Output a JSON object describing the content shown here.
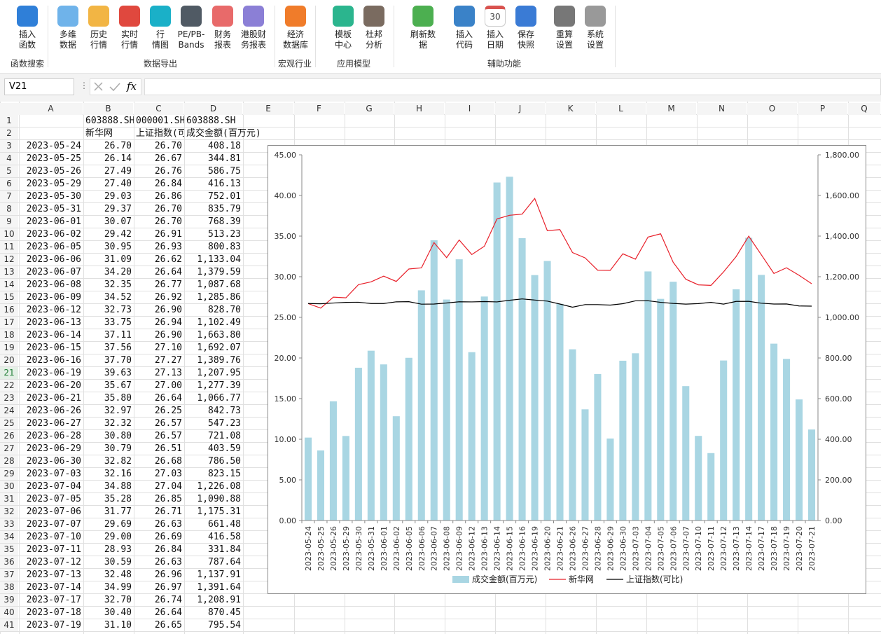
{
  "ribbon": {
    "groups": [
      {
        "name": "函数搜索",
        "buttons": [
          {
            "label": [
              "插入",
              "函数"
            ]
          }
        ]
      },
      {
        "name": "数据导出",
        "buttons": [
          {
            "label": [
              "多维",
              "数据"
            ]
          },
          {
            "label": [
              "历史",
              "行情"
            ]
          },
          {
            "label": [
              "实时",
              "行情"
            ]
          },
          {
            "label": [
              "行",
              "情图"
            ]
          },
          {
            "label": [
              "PE/PB-",
              "Bands"
            ]
          },
          {
            "label": [
              "财务",
              "报表"
            ]
          },
          {
            "label": [
              "港股财",
              "务报表"
            ]
          }
        ]
      },
      {
        "name": "宏观行业",
        "buttons": [
          {
            "label": [
              "经济",
              "数据库"
            ]
          }
        ]
      },
      {
        "name": "应用模型",
        "buttons": [
          {
            "label": [
              "模板",
              "中心"
            ]
          },
          {
            "label": [
              "杜邦",
              "分析"
            ]
          }
        ]
      },
      {
        "name": "辅助功能",
        "buttons": [
          {
            "label": [
              "刷新数",
              "据"
            ]
          },
          {
            "label": [
              "插入",
              "代码"
            ]
          },
          {
            "label": [
              "插入",
              "日期"
            ],
            "icon_text": "30"
          },
          {
            "label": [
              "保存",
              "快照"
            ]
          },
          {
            "label": [
              "重算",
              "设置"
            ]
          },
          {
            "label": [
              "系统",
              "设置"
            ]
          }
        ]
      }
    ]
  },
  "formula_bar": {
    "name_box": "V21",
    "function_symbol": "fx"
  },
  "sheet": {
    "columns": [
      "A",
      "B",
      "C",
      "D",
      "E",
      "F",
      "G",
      "H",
      "I",
      "J",
      "K",
      "L",
      "M",
      "N",
      "O",
      "P",
      "Q"
    ],
    "row_numbers": [
      1,
      2,
      3,
      4,
      5,
      6,
      7,
      8,
      9,
      10,
      11,
      12,
      13,
      14,
      15,
      16,
      17,
      18,
      19,
      20,
      21,
      22,
      23,
      24,
      25,
      26,
      27,
      28,
      29,
      30,
      31,
      32,
      33,
      34,
      35,
      36,
      37,
      38,
      39,
      40,
      41
    ],
    "header_cells": [
      {
        "B": "603888.SH",
        "C": "000001.SH",
        "D": "603888.SH"
      },
      {
        "B": "新华网",
        "C": "上证指数(可比)",
        "D": "成交金额(百万元)"
      }
    ],
    "rows": [
      [
        "2023-05-24",
        "26.70",
        "26.70",
        "408.18"
      ],
      [
        "2023-05-25",
        "26.14",
        "26.67",
        "344.81"
      ],
      [
        "2023-05-26",
        "27.49",
        "26.76",
        "586.75"
      ],
      [
        "2023-05-29",
        "27.40",
        "26.84",
        "416.13"
      ],
      [
        "2023-05-30",
        "29.03",
        "26.86",
        "752.01"
      ],
      [
        "2023-05-31",
        "29.37",
        "26.70",
        "835.79"
      ],
      [
        "2023-06-01",
        "30.07",
        "26.70",
        "768.39"
      ],
      [
        "2023-06-02",
        "29.42",
        "26.91",
        "513.23"
      ],
      [
        "2023-06-05",
        "30.95",
        "26.93",
        "800.83"
      ],
      [
        "2023-06-06",
        "31.09",
        "26.62",
        "1,133.04"
      ],
      [
        "2023-06-07",
        "34.20",
        "26.64",
        "1,379.59"
      ],
      [
        "2023-06-08",
        "32.35",
        "26.77",
        "1,087.68"
      ],
      [
        "2023-06-09",
        "34.52",
        "26.92",
        "1,285.86"
      ],
      [
        "2023-06-12",
        "32.73",
        "26.90",
        "828.70"
      ],
      [
        "2023-06-13",
        "33.75",
        "26.94",
        "1,102.49"
      ],
      [
        "2023-06-14",
        "37.11",
        "26.90",
        "1,663.80"
      ],
      [
        "2023-06-15",
        "37.56",
        "27.10",
        "1,692.07"
      ],
      [
        "2023-06-16",
        "37.70",
        "27.27",
        "1,389.76"
      ],
      [
        "2023-06-19",
        "39.63",
        "27.13",
        "1,207.95"
      ],
      [
        "2023-06-20",
        "35.67",
        "27.00",
        "1,277.39"
      ],
      [
        "2023-06-21",
        "35.80",
        "26.64",
        "1,066.77"
      ],
      [
        "2023-06-26",
        "32.97",
        "26.25",
        "842.73"
      ],
      [
        "2023-06-27",
        "32.32",
        "26.57",
        "547.23"
      ],
      [
        "2023-06-28",
        "30.80",
        "26.57",
        "721.08"
      ],
      [
        "2023-06-29",
        "30.79",
        "26.51",
        "403.59"
      ],
      [
        "2023-06-30",
        "32.82",
        "26.68",
        "786.50"
      ],
      [
        "2023-07-03",
        "32.16",
        "27.03",
        "823.15"
      ],
      [
        "2023-07-04",
        "34.88",
        "27.04",
        "1,226.08"
      ],
      [
        "2023-07-05",
        "35.28",
        "26.85",
        "1,090.88"
      ],
      [
        "2023-07-06",
        "31.77",
        "26.71",
        "1,175.31"
      ],
      [
        "2023-07-07",
        "29.69",
        "26.63",
        "661.48"
      ],
      [
        "2023-07-10",
        "29.00",
        "26.69",
        "416.58"
      ],
      [
        "2023-07-11",
        "28.93",
        "26.84",
        "331.84"
      ],
      [
        "2023-07-12",
        "30.59",
        "26.63",
        "787.64"
      ],
      [
        "2023-07-13",
        "32.48",
        "26.96",
        "1,137.91"
      ],
      [
        "2023-07-14",
        "34.99",
        "26.97",
        "1,391.64"
      ],
      [
        "2023-07-17",
        "32.70",
        "26.74",
        "1,208.91"
      ],
      [
        "2023-07-18",
        "30.40",
        "26.64",
        "870.45"
      ],
      [
        "2023-07-19",
        "31.10",
        "26.65",
        "795.54"
      ]
    ]
  },
  "chart_data": {
    "type": "combo",
    "categories": [
      "2023-05-24",
      "2023-05-25",
      "2023-05-26",
      "2023-05-29",
      "2023-05-30",
      "2023-05-31",
      "2023-06-01",
      "2023-06-02",
      "2023-06-05",
      "2023-06-06",
      "2023-06-07",
      "2023-06-08",
      "2023-06-09",
      "2023-06-12",
      "2023-06-13",
      "2023-06-14",
      "2023-06-15",
      "2023-06-16",
      "2023-06-19",
      "2023-06-20",
      "2023-06-21",
      "2023-06-26",
      "2023-06-27",
      "2023-06-28",
      "2023-06-29",
      "2023-06-30",
      "2023-07-03",
      "2023-07-04",
      "2023-07-05",
      "2023-07-06",
      "2023-07-07",
      "2023-07-10",
      "2023-07-11",
      "2023-07-12",
      "2023-07-13",
      "2023-07-14",
      "2023-07-17",
      "2023-07-18",
      "2023-07-19",
      "2023-07-20",
      "2023-07-21"
    ],
    "series": [
      {
        "name": "成交金额(百万元)",
        "type": "bar",
        "axis": "y2",
        "color": "#a9d6e3",
        "values": [
          408.18,
          344.81,
          586.75,
          416.13,
          752.01,
          835.79,
          768.39,
          513.23,
          800.83,
          1133.04,
          1379.59,
          1087.68,
          1285.86,
          828.7,
          1102.49,
          1663.8,
          1692.07,
          1389.76,
          1207.95,
          1277.39,
          1066.77,
          842.73,
          547.23,
          721.08,
          403.59,
          786.5,
          823.15,
          1226.08,
          1090.88,
          1175.31,
          661.48,
          416.58,
          331.84,
          787.64,
          1137.91,
          1391.64,
          1208.91,
          870.45,
          795.54,
          596,
          448
        ]
      },
      {
        "name": "新华网",
        "type": "line",
        "color": "#e8202a",
        "values": [
          26.7,
          26.14,
          27.49,
          27.4,
          29.03,
          29.37,
          30.07,
          29.42,
          30.95,
          31.09,
          34.2,
          32.35,
          34.52,
          32.73,
          33.75,
          37.11,
          37.56,
          37.7,
          39.63,
          35.67,
          35.8,
          32.97,
          32.32,
          30.8,
          30.79,
          32.82,
          32.16,
          34.88,
          35.28,
          31.77,
          29.69,
          29.0,
          28.93,
          30.59,
          32.48,
          34.99,
          32.7,
          30.4,
          31.1,
          30.17,
          29.14
        ]
      },
      {
        "name": "上证指数(可比)",
        "type": "line",
        "color": "#000000",
        "values": [
          26.7,
          26.67,
          26.76,
          26.84,
          26.86,
          26.7,
          26.7,
          26.91,
          26.93,
          26.62,
          26.64,
          26.77,
          26.92,
          26.9,
          26.94,
          26.9,
          27.1,
          27.27,
          27.13,
          27.0,
          26.64,
          26.25,
          26.57,
          26.57,
          26.51,
          26.68,
          27.03,
          27.04,
          26.85,
          26.71,
          26.63,
          26.69,
          26.84,
          26.63,
          26.96,
          26.97,
          26.74,
          26.64,
          26.65,
          26.4,
          26.38
        ]
      }
    ],
    "ylim": [
      0,
      45
    ],
    "yticks": [
      {
        "value": 0,
        "label": "0.00"
      },
      {
        "value": 5,
        "label": "5.00"
      },
      {
        "value": 10,
        "label": "10.00"
      },
      {
        "value": 15,
        "label": "15.00"
      },
      {
        "value": 20,
        "label": "20.00"
      },
      {
        "value": 25,
        "label": "25.00"
      },
      {
        "value": 30,
        "label": "30.00"
      },
      {
        "value": 35,
        "label": "35.00"
      },
      {
        "value": 40,
        "label": "40.00"
      },
      {
        "value": 45,
        "label": "45.00"
      }
    ],
    "y2lim": [
      0,
      1800
    ],
    "y2ticks": [
      {
        "value": 0,
        "label": "0.00"
      },
      {
        "value": 200,
        "label": "200.00"
      },
      {
        "value": 400,
        "label": "400.00"
      },
      {
        "value": 600,
        "label": "600.00"
      },
      {
        "value": 800,
        "label": "800.00"
      },
      {
        "value": 1000,
        "label": "1,000.00"
      },
      {
        "value": 1200,
        "label": "1,200.00"
      },
      {
        "value": 1400,
        "label": "1,400.00"
      },
      {
        "value": 1600,
        "label": "1,600.00"
      },
      {
        "value": 1800,
        "label": "1,800.00"
      }
    ],
    "legend": "bottom",
    "grid": false
  }
}
